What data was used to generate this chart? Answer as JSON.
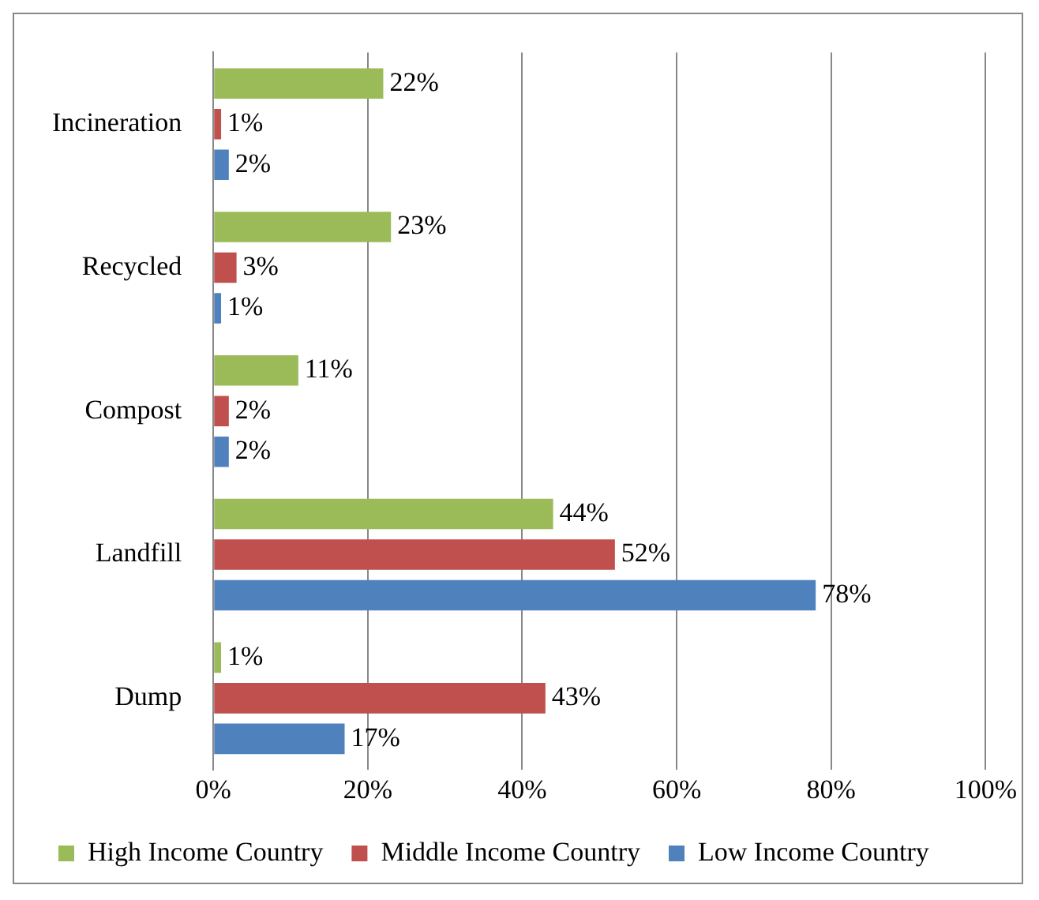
{
  "chart_data": {
    "type": "bar",
    "orientation": "horizontal",
    "categories": [
      "Incineration",
      "Recycled",
      "Compost",
      "Landfill",
      "Dump"
    ],
    "series": [
      {
        "name": "High Income Country",
        "color": "#9bbb59",
        "values": [
          22,
          23,
          11,
          44,
          1
        ],
        "value_labels": [
          "22%",
          "23%",
          "11%",
          "44%",
          "1%"
        ]
      },
      {
        "name": "Middle Income Country",
        "color": "#c0504d",
        "values": [
          1,
          3,
          2,
          52,
          43
        ],
        "value_labels": [
          "1%",
          "3%",
          "2%",
          "52%",
          "43%"
        ]
      },
      {
        "name": "Low Income Country",
        "color": "#4f81bd",
        "values": [
          2,
          1,
          2,
          78,
          17
        ],
        "value_labels": [
          "2%",
          "1%",
          "2%",
          "78%",
          "17%"
        ]
      }
    ],
    "xlim": [
      0,
      100
    ],
    "xticks": [
      {
        "value": 0,
        "label": "0%"
      },
      {
        "value": 20,
        "label": "20%"
      },
      {
        "value": 40,
        "label": "40%"
      },
      {
        "value": 60,
        "label": "60%"
      },
      {
        "value": 80,
        "label": "80%"
      },
      {
        "value": 100,
        "label": "100%"
      }
    ],
    "grid": "x",
    "legend": "bottom"
  }
}
